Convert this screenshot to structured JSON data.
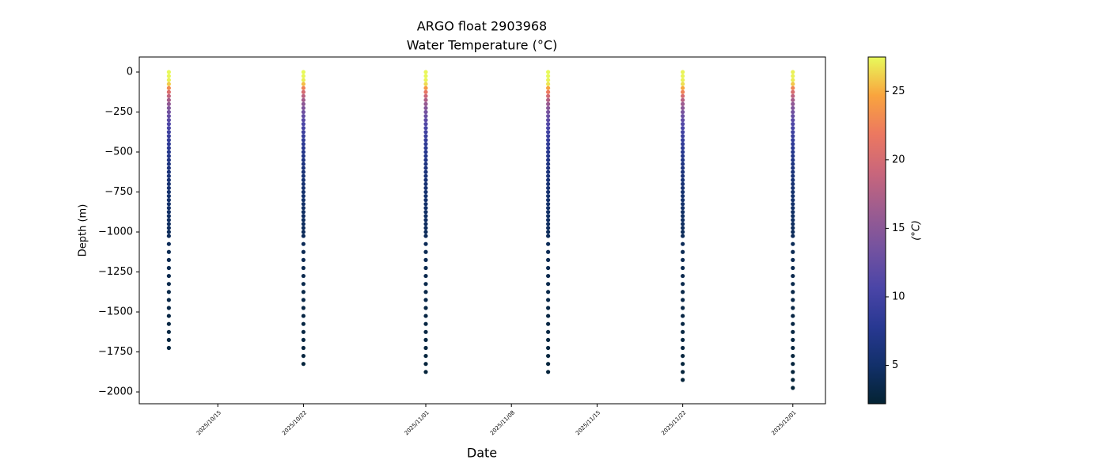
{
  "chart_data": {
    "type": "scatter",
    "title": "ARGO float 2903968",
    "subtitle": "Water Temperature (°C)",
    "x_label": "Date",
    "y_label": "Depth (m)",
    "colorbar_label": "(°C)",
    "xlim": [
      "2025/10/08 14:00",
      "2025/12/03 16:00"
    ],
    "xticks": [
      "2025/10/15",
      "2025/10/22",
      "2025/11/01",
      "2025/11/08",
      "2025/11/15",
      "2025/11/22",
      "2025/12/01"
    ],
    "ylim": [
      -2074,
      94
    ],
    "yticks": [
      {
        "value": 0,
        "label": "0"
      },
      {
        "value": -250,
        "label": "−250"
      },
      {
        "value": -500,
        "label": "−500"
      },
      {
        "value": -750,
        "label": "−750"
      },
      {
        "value": -1000,
        "label": "−1000"
      },
      {
        "value": -1250,
        "label": "−1250"
      },
      {
        "value": -1500,
        "label": "−1500"
      },
      {
        "value": -1750,
        "label": "−1750"
      },
      {
        "value": -2000,
        "label": "−2000"
      }
    ],
    "clim": [
      2.2,
      27.5
    ],
    "cticks": [
      5,
      10,
      15,
      20,
      25
    ],
    "colormap": [
      "#042333",
      "#12306a",
      "#283892",
      "#4a45a7",
      "#7352a0",
      "#9c5c90",
      "#c9667b",
      "#ec7860",
      "#f9a43e",
      "#e8fa5b"
    ],
    "depth": [
      0,
      -25,
      -50,
      -75,
      -100,
      -125,
      -150,
      -175,
      -200,
      -225,
      -250,
      -275,
      -300,
      -325,
      -350,
      -375,
      -400,
      -425,
      -450,
      -475,
      -500,
      -525,
      -550,
      -575,
      -600,
      -625,
      -650,
      -675,
      -700,
      -725,
      -750,
      -775,
      -800,
      -825,
      -850,
      -875,
      -900,
      -925,
      -950,
      -975,
      -1000,
      -1025,
      -1075,
      -1125,
      -1175,
      -1225,
      -1275,
      -1325,
      -1375,
      -1425,
      -1475,
      -1525,
      -1575,
      -1625,
      -1675,
      -1725,
      -1775,
      -1825,
      -1875,
      -1925,
      -1975
    ],
    "series": [
      {
        "date": "2025/10/11",
        "temperature": [
          27.5,
          27.4,
          27.2,
          26,
          23,
          20.5,
          18.5,
          16.8,
          15.5,
          14.3,
          13.3,
          12.4,
          11.6,
          10.9,
          10.3,
          9.7,
          9.2,
          8.7,
          8.3,
          7.9,
          7.5,
          7.2,
          6.9,
          6.6,
          6.4,
          6.2,
          6,
          5.8,
          5.6,
          5.5,
          5.3,
          5.2,
          5.1,
          5,
          4.9,
          4.8,
          4.7,
          4.6,
          4.5,
          4.4,
          4.3,
          4.2,
          4.1,
          3.9,
          3.8,
          3.7,
          3.6,
          3.5,
          3.4,
          3.3,
          3.2,
          3.1,
          3.05,
          3,
          2.9,
          2.85,
          null,
          null,
          null,
          null,
          null
        ]
      },
      {
        "date": "2025/10/22",
        "temperature": [
          27.5,
          27.4,
          27.1,
          25.5,
          22.5,
          20,
          18.2,
          16.6,
          15.3,
          14.2,
          13.2,
          12.3,
          11.5,
          10.8,
          10.2,
          9.6,
          9.1,
          8.6,
          8.2,
          7.8,
          7.4,
          7.1,
          6.8,
          6.6,
          6.3,
          6.1,
          5.9,
          5.7,
          5.6,
          5.4,
          5.3,
          5.2,
          5,
          4.9,
          4.8,
          4.7,
          4.6,
          4.5,
          4.5,
          4.4,
          4.3,
          4.2,
          4.1,
          3.9,
          3.8,
          3.7,
          3.6,
          3.5,
          3.4,
          3.3,
          3.2,
          3.1,
          3.05,
          3,
          2.9,
          2.85,
          2.8,
          2.7,
          null,
          null,
          null
        ]
      },
      {
        "date": "2025/11/01",
        "temperature": [
          27.4,
          27.4,
          27.3,
          26.5,
          24,
          21.5,
          19.2,
          17.3,
          15.9,
          14.6,
          13.5,
          12.6,
          11.8,
          11.1,
          10.4,
          9.8,
          9.3,
          8.8,
          8.4,
          8,
          7.6,
          7.3,
          7,
          6.7,
          6.5,
          6.2,
          6,
          5.8,
          5.7,
          5.5,
          5.4,
          5.2,
          5.1,
          5,
          4.9,
          4.8,
          4.7,
          4.6,
          4.5,
          4.4,
          4.3,
          4.2,
          4.1,
          3.9,
          3.8,
          3.7,
          3.6,
          3.5,
          3.4,
          3.3,
          3.2,
          3.1,
          3.05,
          3,
          2.9,
          2.85,
          2.8,
          2.7,
          2.65,
          null,
          null
        ]
      },
      {
        "date": "2025/11/11",
        "temperature": [
          27.5,
          27.5,
          27.3,
          26.8,
          24.5,
          22,
          19.6,
          17.6,
          16.1,
          14.8,
          13.7,
          12.7,
          11.9,
          11.1,
          10.5,
          9.9,
          9.3,
          8.9,
          8.4,
          8,
          7.6,
          7.3,
          7,
          6.7,
          6.5,
          6.3,
          6.1,
          5.9,
          5.7,
          5.5,
          5.4,
          5.2,
          5.1,
          5,
          4.9,
          4.8,
          4.7,
          4.6,
          4.5,
          4.4,
          4.3,
          4.2,
          4.1,
          3.9,
          3.8,
          3.7,
          3.6,
          3.5,
          3.4,
          3.3,
          3.2,
          3.1,
          3.05,
          3,
          2.9,
          2.85,
          2.8,
          2.7,
          2.65,
          null,
          null
        ]
      },
      {
        "date": "2025/11/22",
        "temperature": [
          27.3,
          27.3,
          27.2,
          26.6,
          24.8,
          22.5,
          20,
          17.9,
          16.3,
          15,
          13.8,
          12.8,
          12,
          11.2,
          10.5,
          9.9,
          9.4,
          8.9,
          8.5,
          8.1,
          7.7,
          7.3,
          7,
          6.8,
          6.5,
          6.3,
          6.1,
          5.9,
          5.7,
          5.5,
          5.4,
          5.3,
          5.1,
          5,
          4.9,
          4.8,
          4.7,
          4.6,
          4.5,
          4.4,
          4.3,
          4.2,
          4.1,
          3.9,
          3.8,
          3.7,
          3.6,
          3.5,
          3.4,
          3.3,
          3.2,
          3.1,
          3.05,
          3,
          2.9,
          2.85,
          2.8,
          2.7,
          2.65,
          2.6,
          null
        ]
      },
      {
        "date": "2025/12/01",
        "temperature": [
          27.2,
          27.2,
          27,
          25.8,
          22.8,
          20.2,
          18.3,
          16.7,
          15.4,
          14.3,
          13.3,
          12.4,
          11.6,
          10.9,
          10.3,
          9.7,
          9.2,
          8.7,
          8.3,
          7.9,
          7.5,
          7.2,
          6.9,
          6.6,
          6.4,
          6.2,
          6,
          5.8,
          5.6,
          5.5,
          5.3,
          5.2,
          5.1,
          5,
          4.9,
          4.8,
          4.7,
          4.6,
          4.5,
          4.4,
          4.3,
          4.2,
          4.1,
          3.9,
          3.8,
          3.7,
          3.6,
          3.5,
          3.4,
          3.3,
          3.2,
          3.1,
          3.05,
          3,
          2.9,
          2.85,
          2.8,
          2.7,
          2.65,
          2.6,
          2.5
        ]
      }
    ]
  }
}
